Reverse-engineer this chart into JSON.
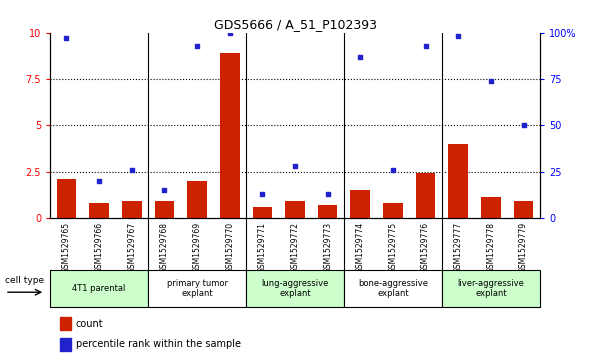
{
  "title": "GDS5666 / A_51_P102393",
  "samples": [
    "GSM1529765",
    "GSM1529766",
    "GSM1529767",
    "GSM1529768",
    "GSM1529769",
    "GSM1529770",
    "GSM1529771",
    "GSM1529772",
    "GSM1529773",
    "GSM1529774",
    "GSM1529775",
    "GSM1529776",
    "GSM1529777",
    "GSM1529778",
    "GSM1529779"
  ],
  "bar_values": [
    2.1,
    0.8,
    0.9,
    0.9,
    2.0,
    8.9,
    0.6,
    0.9,
    0.7,
    1.5,
    0.8,
    2.4,
    4.0,
    1.1,
    0.9
  ],
  "dot_values": [
    97,
    20,
    26,
    15,
    93,
    100,
    13,
    28,
    13,
    87,
    26,
    93,
    98,
    74,
    50
  ],
  "bar_color": "#CC2200",
  "dot_color": "#2222CC",
  "ylim_left": [
    0,
    10
  ],
  "ylim_right": [
    0,
    100
  ],
  "yticks_left": [
    0,
    2.5,
    5.0,
    7.5,
    10
  ],
  "yticks_right": [
    0,
    25,
    50,
    75,
    100
  ],
  "ytick_labels_right": [
    "0",
    "25",
    "50",
    "75",
    "100%"
  ],
  "ytick_labels_left": [
    "0",
    "2.5",
    "5",
    "7.5",
    "10"
  ],
  "groups": [
    {
      "label": "4T1 parental",
      "start": 0,
      "end": 2,
      "color": "#CCFFCC"
    },
    {
      "label": "primary tumor\nexplant",
      "start": 3,
      "end": 5,
      "color": "#FFFFFF"
    },
    {
      "label": "lung-aggressive\nexplant",
      "start": 6,
      "end": 8,
      "color": "#CCFFCC"
    },
    {
      "label": "bone-aggressive\nexplant",
      "start": 9,
      "end": 11,
      "color": "#FFFFFF"
    },
    {
      "label": "liver-aggressive\nexplant",
      "start": 12,
      "end": 14,
      "color": "#CCFFCC"
    }
  ],
  "group_boundaries": [
    2.5,
    5.5,
    8.5,
    11.5
  ],
  "legend_count_label": "count",
  "legend_pct_label": "percentile rank within the sample",
  "cell_type_label": "cell type"
}
